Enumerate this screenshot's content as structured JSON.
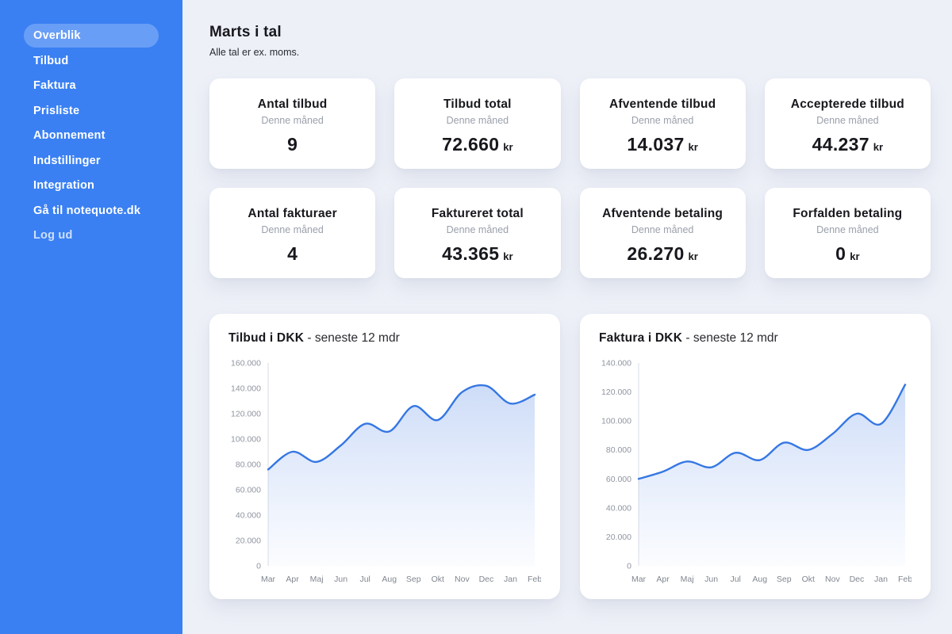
{
  "sidebar": {
    "items": [
      {
        "id": "overblik",
        "label": "Overblik",
        "active": true
      },
      {
        "id": "tilbud",
        "label": "Tilbud"
      },
      {
        "id": "faktura",
        "label": "Faktura"
      },
      {
        "id": "prisliste",
        "label": "Prisliste"
      },
      {
        "id": "abonnement",
        "label": "Abonnement"
      },
      {
        "id": "indstillinger",
        "label": "Indstillinger"
      },
      {
        "id": "integration",
        "label": "Integration"
      },
      {
        "id": "ga-til-notequote",
        "label": "Gå til notequote.dk"
      },
      {
        "id": "log-ud",
        "label": "Log ud",
        "muted": true
      }
    ]
  },
  "header": {
    "title": "Marts i tal",
    "subtitle": "Alle tal er ex. moms."
  },
  "stat_cards": [
    {
      "id": "antal-tilbud",
      "title": "Antal tilbud",
      "period": "Denne måned",
      "value": "9",
      "unit": ""
    },
    {
      "id": "tilbud-total",
      "title": "Tilbud total",
      "period": "Denne måned",
      "value": "72.660",
      "unit": "kr"
    },
    {
      "id": "afventende-tilbud",
      "title": "Afventende tilbud",
      "period": "Denne måned",
      "value": "14.037",
      "unit": "kr"
    },
    {
      "id": "accepterede-tilbud",
      "title": "Accepterede tilbud",
      "period": "Denne måned",
      "value": "44.237",
      "unit": "kr"
    },
    {
      "id": "antal-fakturaer",
      "title": "Antal fakturaer",
      "period": "Denne måned",
      "value": "4",
      "unit": ""
    },
    {
      "id": "faktureret-total",
      "title": "Faktureret total",
      "period": "Denne måned",
      "value": "43.365",
      "unit": "kr"
    },
    {
      "id": "afventende-betaling",
      "title": "Afventende betaling",
      "period": "Denne måned",
      "value": "26.270",
      "unit": "kr"
    },
    {
      "id": "forfalden-betaling",
      "title": "Forfalden betaling",
      "period": "Denne måned",
      "value": "0",
      "unit": "kr"
    }
  ],
  "chart_data": [
    {
      "type": "area",
      "title": "Tilbud i DKK",
      "subtitle": "- seneste 12 mdr",
      "categories": [
        "Mar",
        "Apr",
        "Maj",
        "Jun",
        "Jul",
        "Aug",
        "Sep",
        "Okt",
        "Nov",
        "Dec",
        "Jan",
        "Feb"
      ],
      "values": [
        76000,
        90000,
        82000,
        95000,
        112000,
        106000,
        126000,
        115000,
        137000,
        142000,
        128000,
        135000
      ],
      "xlabel": "",
      "ylabel": "",
      "ylim": [
        0,
        160000
      ],
      "ytick_step": 20000,
      "grid": false,
      "legend": false,
      "line_color": "#3577e3",
      "fill_top_color": "rgba(90,140,230,0.30)",
      "fill_bottom_color": "rgba(120,160,240,0.03)"
    },
    {
      "type": "area",
      "title": "Faktura i DKK",
      "subtitle": "- seneste 12 mdr",
      "categories": [
        "Mar",
        "Apr",
        "Maj",
        "Jun",
        "Jul",
        "Aug",
        "Sep",
        "Okt",
        "Nov",
        "Dec",
        "Jan",
        "Feb"
      ],
      "values": [
        60000,
        65000,
        72000,
        68000,
        78000,
        73000,
        85000,
        80000,
        91000,
        105000,
        98000,
        125000
      ],
      "xlabel": "",
      "ylabel": "",
      "ylim": [
        0,
        140000
      ],
      "ytick_step": 20000,
      "grid": false,
      "legend": false,
      "line_color": "#3577e3",
      "fill_top_color": "rgba(90,140,230,0.30)",
      "fill_bottom_color": "rgba(120,160,240,0.03)"
    }
  ],
  "colors": {
    "sidebar_bg": "#3a80f3",
    "sidebar_active_pill": "rgba(255,255,255,0.24)",
    "main_bg": "#edf0f7",
    "card_bg": "#ffffff",
    "chart_line": "#3577e3",
    "axis_line": "#d9dde4",
    "text_dark": "#17181d",
    "text_gray": "#9aa0ab"
  }
}
